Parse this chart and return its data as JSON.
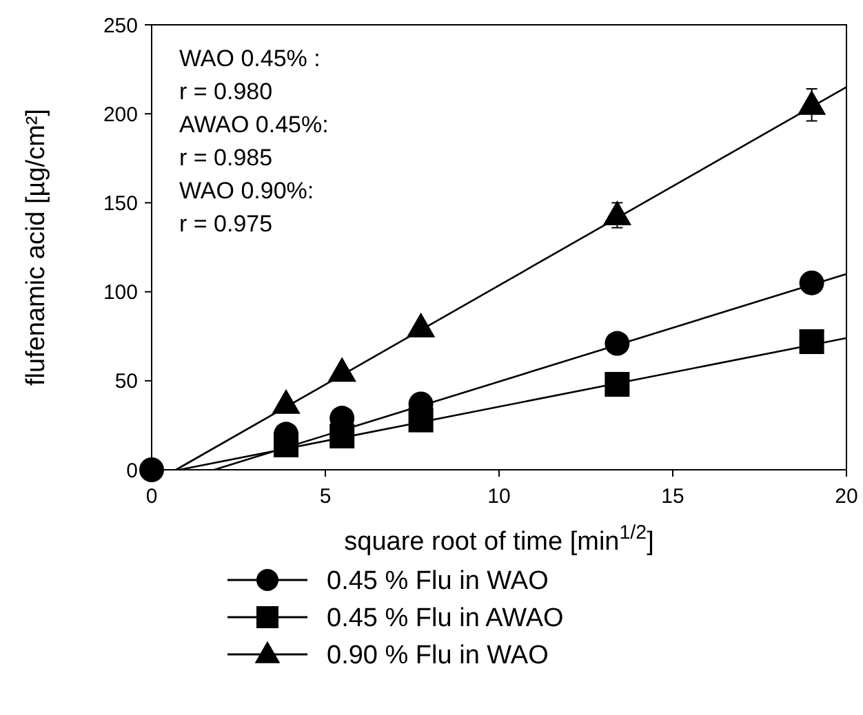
{
  "chart_data": {
    "type": "scatter",
    "xlabel": "square root of time [min$^{1/2}$]",
    "ylabel": "flufenamic acid [µg/cm²]",
    "x": [
      0,
      3.87,
      5.48,
      7.75,
      13.4,
      19.0
    ],
    "xlim": [
      0,
      20
    ],
    "xticks": [
      0,
      5,
      10,
      15,
      20
    ],
    "ylim": [
      0,
      250
    ],
    "yticks": [
      0,
      50,
      100,
      150,
      200,
      250
    ],
    "grid": false,
    "legend": "bottom",
    "series": [
      {
        "name": "0.45 %  Flu in WAO",
        "color": "#000000",
        "marker": "circle",
        "values": [
          0,
          20,
          29,
          37,
          71,
          105
        ]
      },
      {
        "name": "0.45 %  Flu in AWAO",
        "color": "#000000",
        "marker": "square",
        "values": [
          null,
          14,
          19,
          28,
          48,
          72
        ]
      },
      {
        "name": "0.90 %  Flu in WAO",
        "color": "#000000",
        "marker": "triangle",
        "values": [
          null,
          37,
          55,
          80,
          143,
          205
        ],
        "errors": [
          null,
          null,
          null,
          null,
          7,
          9
        ]
      },
      {
        "type": "line",
        "color": "#000000",
        "marker": "none",
        "x": [
          1.8,
          20
        ],
        "values": [
          0,
          110
        ]
      },
      {
        "type": "line",
        "color": "#000000",
        "marker": "none",
        "x": [
          0.8,
          20
        ],
        "values": [
          0,
          74
        ]
      },
      {
        "type": "line",
        "color": "#000000",
        "marker": "none",
        "x": [
          0.7,
          20
        ],
        "values": [
          0,
          215
        ]
      }
    ],
    "annotations": [
      "WAO 0.45% :\nr = 0.980",
      "AWAO 0.45%:\nr = 0.985",
      "WAO 0.90%:\nr = 0.975"
    ]
  }
}
